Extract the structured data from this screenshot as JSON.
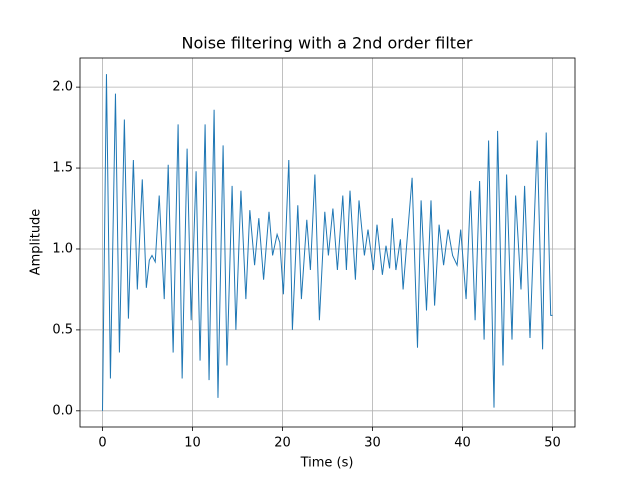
{
  "chart_data": {
    "type": "line",
    "title": "Noise filtering with a 2nd order filter",
    "xlabel": "Time (s)",
    "ylabel": "Amplitude",
    "xlim": [
      -2.5,
      52.5
    ],
    "ylim": [
      -0.1,
      2.18
    ],
    "xticks": [
      0,
      10,
      20,
      30,
      40,
      50
    ],
    "yticks": [
      {
        "value": 0,
        "label": "0.0"
      },
      {
        "value": 0.5,
        "label": "0.5"
      },
      {
        "value": 1,
        "label": "1.0"
      },
      {
        "value": 1.5,
        "label": "1.5"
      },
      {
        "value": 2,
        "label": "2.0"
      }
    ],
    "grid": true,
    "series": [
      {
        "color": "#1f77b4",
        "x": [
          0,
          0.44,
          0.88,
          1.44,
          1.88,
          2.43,
          2.88,
          3.43,
          3.87,
          4.42,
          4.87,
          5.2,
          5.5,
          5.86,
          6.3,
          6.86,
          7.3,
          7.85,
          8.4,
          8.85,
          9.4,
          9.85,
          10.4,
          10.84,
          11.4,
          11.84,
          12.4,
          12.83,
          13.4,
          13.83,
          14.4,
          14.82,
          15.38,
          15.93,
          16.37,
          16.9,
          17.37,
          17.9,
          18.5,
          18.9,
          19.4,
          19.7,
          20.1,
          20.7,
          21.1,
          21.7,
          22.1,
          22.7,
          23.1,
          23.6,
          24.1,
          24.7,
          25.1,
          25.6,
          26.1,
          26.7,
          27.1,
          27.5,
          28.1,
          28.5,
          29.1,
          29.5,
          30.1,
          30.5,
          31.1,
          31.5,
          31.9,
          32.2,
          32.6,
          33.1,
          33.4,
          34.4,
          35.0,
          35.4,
          36.0,
          36.5,
          36.9,
          37.4,
          37.9,
          38.4,
          38.9,
          39.4,
          39.8,
          40.4,
          40.9,
          41.4,
          41.9,
          42.4,
          42.9,
          43.5,
          43.9,
          44.5,
          44.9,
          45.5,
          45.9,
          46.5,
          46.9,
          47.5,
          48.3,
          48.9,
          49.3,
          49.8,
          50
        ],
        "values": [
          0,
          2.08,
          0.2,
          1.96,
          0.36,
          1.8,
          0.57,
          1.55,
          0.75,
          1.43,
          0.76,
          0.93,
          0.96,
          0.92,
          1.33,
          0.69,
          1.52,
          0.36,
          1.77,
          0.2,
          1.62,
          0.56,
          1.48,
          0.31,
          1.77,
          0.19,
          1.86,
          0.08,
          1.64,
          0.28,
          1.39,
          0.5,
          1.36,
          0.69,
          1.24,
          0.9,
          1.19,
          0.81,
          1.23,
          0.96,
          1.09,
          1.04,
          0.72,
          1.55,
          0.5,
          1.27,
          0.69,
          1.18,
          0.87,
          1.46,
          0.56,
          1.23,
          0.96,
          1.25,
          0.87,
          1.33,
          0.87,
          1.36,
          0.81,
          1.3,
          0.96,
          1.12,
          0.87,
          1.15,
          0.84,
          1.02,
          0.88,
          1.19,
          0.87,
          1.06,
          0.75,
          1.44,
          0.39,
          1.3,
          0.62,
          1.3,
          0.65,
          1.15,
          0.9,
          1.12,
          0.96,
          0.9,
          1.12,
          0.69,
          1.36,
          0.56,
          1.42,
          0.44,
          1.67,
          0.02,
          1.73,
          0.28,
          1.46,
          0.44,
          1.33,
          0.75,
          1.39,
          0.45,
          1.67,
          0.38,
          1.72,
          0.59,
          0.59
        ]
      }
    ]
  }
}
